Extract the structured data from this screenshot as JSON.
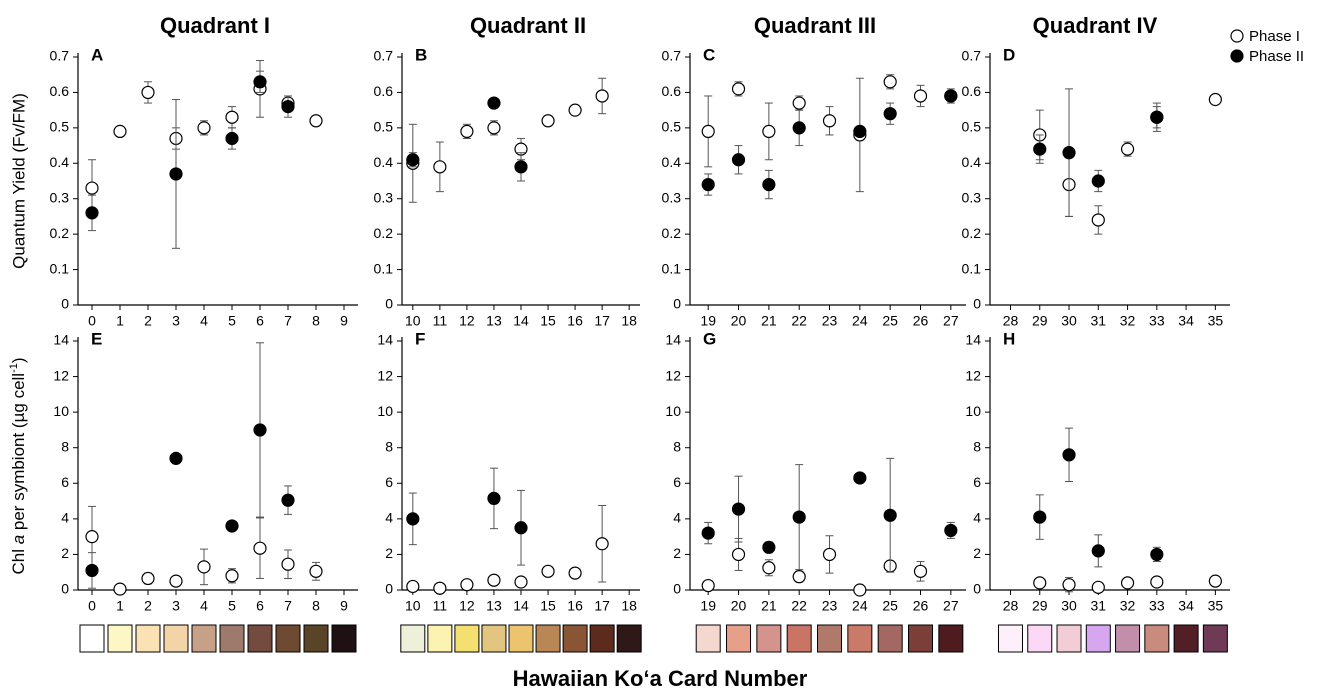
{
  "column_titles": [
    "Quadrant I",
    "Quadrant II",
    "Quadrant III",
    "Quadrant IV"
  ],
  "legend": [
    {
      "name": "Phase I",
      "fill": "#ffffff"
    },
    {
      "name": "Phase II",
      "fill": "#000000"
    }
  ],
  "y_labels": {
    "top": "Quantum Yield (Fv/FM)",
    "bottom": [
      "Chl ",
      "a",
      " per symbiont (µg cell",
      "-1",
      ")"
    ]
  },
  "x_label": "Hawaiian Ko‘a Card Number",
  "chart_data": [
    {
      "type": "scatter",
      "panel_label": "A",
      "xlim": [
        -0.5,
        9.5
      ],
      "xticks": [
        0,
        1,
        2,
        3,
        4,
        5,
        6,
        7,
        8,
        9
      ],
      "ylim": [
        0,
        0.7
      ],
      "yticks": [
        0,
        0.1,
        0.2,
        0.3,
        0.4,
        0.5,
        0.6,
        0.7
      ],
      "series": [
        {
          "x": [
            0,
            1,
            2,
            3,
            4,
            5,
            6,
            7,
            8
          ],
          "values": [
            0.33,
            0.49,
            0.6,
            0.47,
            0.5,
            0.53,
            0.61,
            0.57,
            0.52
          ],
          "errors": [
            0.08,
            null,
            0.03,
            0.03,
            0.02,
            0.03,
            0.08,
            0.02,
            null
          ]
        },
        {
          "x": [
            0,
            3,
            5,
            6,
            7
          ],
          "values": [
            0.26,
            0.37,
            0.47,
            0.63,
            0.56
          ],
          "errors": [
            0.05,
            0.21,
            0.03,
            0.03,
            0.03
          ]
        }
      ]
    },
    {
      "type": "scatter",
      "panel_label": "B",
      "xlim": [
        9.6,
        18.4
      ],
      "xticks": [
        10,
        11,
        12,
        13,
        14,
        15,
        16,
        17,
        18
      ],
      "ylim": [
        0,
        0.7
      ],
      "yticks": [
        0,
        0.1,
        0.2,
        0.3,
        0.4,
        0.5,
        0.6,
        0.7
      ],
      "series": [
        {
          "x": [
            10,
            11,
            12,
            13,
            14,
            15,
            16,
            17
          ],
          "values": [
            0.4,
            0.39,
            0.49,
            0.5,
            0.44,
            0.52,
            0.55,
            0.59
          ],
          "errors": [
            0.11,
            0.07,
            0.02,
            0.02,
            0.03,
            null,
            null,
            0.05
          ]
        },
        {
          "x": [
            10,
            13,
            14
          ],
          "values": [
            0.41,
            0.57,
            0.39
          ],
          "errors": [
            0.02,
            null,
            0.04
          ]
        }
      ]
    },
    {
      "type": "scatter",
      "panel_label": "C",
      "xlim": [
        18.4,
        27.5
      ],
      "xticks": [
        19,
        20,
        21,
        22,
        23,
        24,
        25,
        26,
        27
      ],
      "ylim": [
        0,
        0.7
      ],
      "yticks": [
        0,
        0.1,
        0.2,
        0.3,
        0.4,
        0.5,
        0.6,
        0.7
      ],
      "series": [
        {
          "x": [
            19,
            20,
            21,
            22,
            23,
            24,
            25,
            26,
            27
          ],
          "values": [
            0.49,
            0.61,
            0.49,
            0.57,
            0.52,
            0.48,
            0.63,
            0.59,
            0.59
          ],
          "errors": [
            0.1,
            0.02,
            0.08,
            0.02,
            0.04,
            0.16,
            0.02,
            0.03,
            null
          ]
        },
        {
          "x": [
            19,
            20,
            21,
            22,
            24,
            25,
            27
          ],
          "values": [
            0.34,
            0.41,
            0.34,
            0.5,
            0.49,
            0.54,
            0.59
          ],
          "errors": [
            0.03,
            0.04,
            0.04,
            0.05,
            null,
            0.03,
            0.02
          ]
        }
      ]
    },
    {
      "type": "scatter",
      "panel_label": "D",
      "xlim": [
        27.3,
        35.5
      ],
      "xticks": [
        28,
        29,
        30,
        31,
        32,
        33,
        34,
        35
      ],
      "ylim": [
        0,
        0.7
      ],
      "yticks": [
        0,
        0.1,
        0.2,
        0.3,
        0.4,
        0.5,
        0.6,
        0.7
      ],
      "series": [
        {
          "x": [
            29,
            30,
            31,
            32,
            33,
            35
          ],
          "values": [
            0.48,
            0.34,
            0.24,
            0.44,
            0.53,
            0.58
          ],
          "errors": [
            0.07,
            0.09,
            0.04,
            0.02,
            0.03,
            null
          ]
        },
        {
          "x": [
            29,
            30,
            31,
            33
          ],
          "values": [
            0.44,
            0.43,
            0.35,
            0.53
          ],
          "errors": [
            0.04,
            0.18,
            0.03,
            0.04
          ]
        }
      ]
    },
    {
      "type": "scatter",
      "panel_label": "E",
      "xlim": [
        -0.5,
        9.5
      ],
      "xticks": [
        0,
        1,
        2,
        3,
        4,
        5,
        6,
        7,
        8,
        9
      ],
      "ylim": [
        0,
        14
      ],
      "yticks": [
        0,
        2,
        4,
        6,
        8,
        10,
        12,
        14
      ],
      "series": [
        {
          "x": [
            0,
            1,
            2,
            3,
            4,
            5,
            6,
            7,
            8
          ],
          "values": [
            3,
            0.05,
            0.65,
            0.5,
            1.3,
            0.8,
            2.35,
            1.45,
            1.05
          ],
          "errors": [
            1.7,
            null,
            0.3,
            null,
            1,
            0.4,
            1.7,
            0.8,
            0.5
          ]
        },
        {
          "x": [
            0,
            3,
            5,
            6,
            7
          ],
          "values": [
            1.1,
            7.4,
            3.6,
            9,
            5.05
          ],
          "errors": [
            1,
            null,
            null,
            4.9,
            0.8
          ]
        }
      ],
      "swatches": [
        "#ffffff",
        "#fdf7c6",
        "#fae2b4",
        "#f3d3a8",
        "#c7a088",
        "#9e7a6d",
        "#734b3f",
        "#6e4a33",
        "#5a4428",
        "#1f1014"
      ]
    },
    {
      "type": "scatter",
      "panel_label": "F",
      "xlim": [
        9.6,
        18.4
      ],
      "xticks": [
        10,
        11,
        12,
        13,
        14,
        15,
        16,
        17,
        18
      ],
      "ylim": [
        0,
        14
      ],
      "yticks": [
        0,
        2,
        4,
        6,
        8,
        10,
        12,
        14
      ],
      "series": [
        {
          "x": [
            10,
            11,
            12,
            13,
            14,
            15,
            16,
            17
          ],
          "values": [
            0.2,
            0.1,
            0.3,
            0.55,
            0.45,
            1.05,
            0.95,
            2.6
          ],
          "errors": [
            null,
            null,
            null,
            null,
            null,
            null,
            null,
            2.15
          ]
        },
        {
          "x": [
            10,
            13,
            14
          ],
          "values": [
            4,
            5.15,
            3.5
          ],
          "errors": [
            1.45,
            1.7,
            2.1
          ]
        }
      ],
      "swatches": [
        "#eef0d9",
        "#fcf3b2",
        "#f4e070",
        "#e2c57e",
        "#ecc46d",
        "#b98656",
        "#8a5534",
        "#5d2a1e",
        "#2e1818"
      ]
    },
    {
      "type": "scatter",
      "panel_label": "G",
      "xlim": [
        18.4,
        27.5
      ],
      "xticks": [
        19,
        20,
        21,
        22,
        23,
        24,
        25,
        26,
        27
      ],
      "ylim": [
        0,
        14
      ],
      "yticks": [
        0,
        2,
        4,
        6,
        8,
        10,
        12,
        14
      ],
      "series": [
        {
          "x": [
            19,
            20,
            21,
            22,
            23,
            24,
            25,
            26
          ],
          "values": [
            0.25,
            2,
            1.25,
            0.75,
            2,
            0,
            1.35,
            1.05
          ],
          "errors": [
            null,
            0.9,
            0.45,
            0.3,
            1.05,
            null,
            null,
            0.55
          ]
        },
        {
          "x": [
            19,
            20,
            21,
            22,
            24,
            25,
            27
          ],
          "values": [
            3.2,
            4.55,
            2.4,
            4.1,
            6.3,
            4.2,
            3.35
          ],
          "errors": [
            0.6,
            1.85,
            0.3,
            2.95,
            null,
            3.2,
            0.45
          ]
        }
      ],
      "swatches": [
        "#f4d7cf",
        "#e6a08a",
        "#d4938d",
        "#c97464",
        "#b07a6a",
        "#c97a68",
        "#a46863",
        "#7b3f37",
        "#4e1b1e"
      ]
    },
    {
      "type": "scatter",
      "panel_label": "H",
      "xlim": [
        27.3,
        35.5
      ],
      "xticks": [
        28,
        29,
        30,
        31,
        32,
        33,
        34,
        35
      ],
      "ylim": [
        0,
        14
      ],
      "yticks": [
        0,
        2,
        4,
        6,
        8,
        10,
        12,
        14
      ],
      "series": [
        {
          "x": [
            29,
            30,
            31,
            32,
            33,
            35
          ],
          "values": [
            0.4,
            0.3,
            0.15,
            0.4,
            0.45,
            0.5
          ],
          "errors": [
            null,
            0.4,
            null,
            null,
            null,
            null
          ]
        },
        {
          "x": [
            29,
            30,
            31,
            33
          ],
          "values": [
            4.1,
            7.6,
            2.2,
            2
          ],
          "errors": [
            1.25,
            1.5,
            0.9,
            0.4
          ]
        }
      ],
      "swatches": [
        "#fdf0fb",
        "#fbd9f6",
        "#f3cdd6",
        "#d6a6ee",
        "#c18faa",
        "#c98b7e",
        "#521f26",
        "#6e3a55"
      ]
    }
  ]
}
